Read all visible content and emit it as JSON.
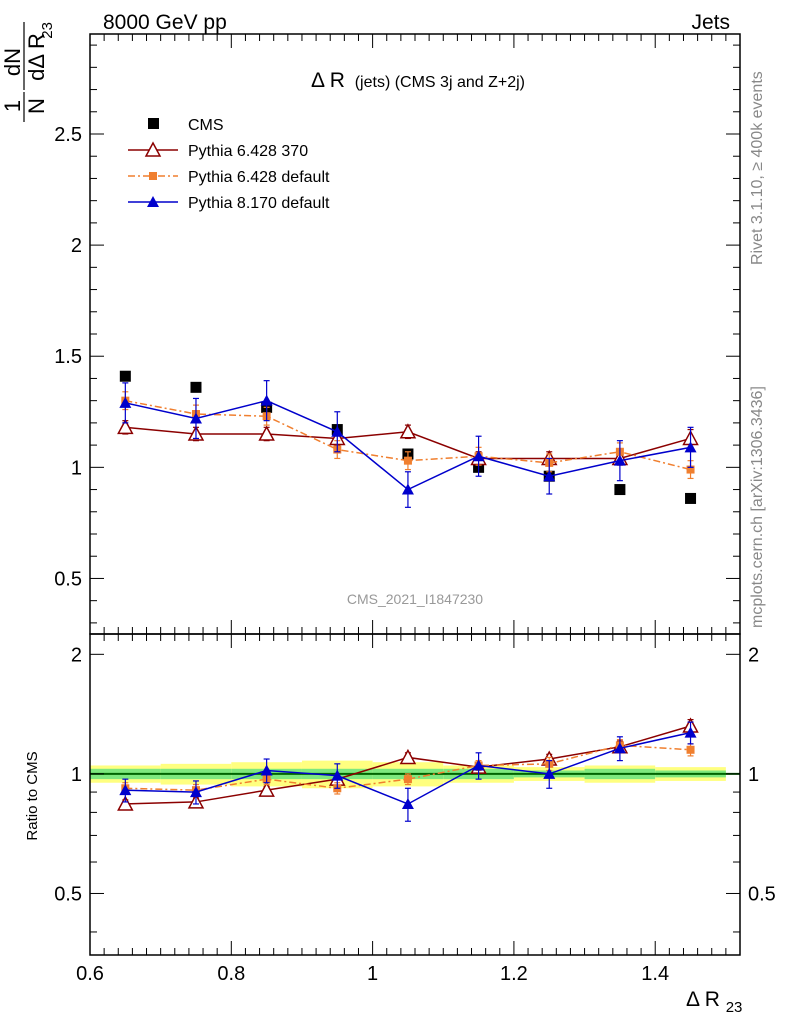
{
  "header": {
    "left": "8000 GeV pp",
    "right": "Jets"
  },
  "side_text": {
    "rivet": "Rivet 3.1.10, ≥ 400k events",
    "mcplots": "mcplots.cern.ch [arXiv:1306.3436]"
  },
  "analysis_id": "CMS_2021_I1847230",
  "colors": {
    "cms": "#000000",
    "py6_370": "#8b0000",
    "py6_default": "#f07f2f",
    "py8_default": "#0000cc",
    "band_inner": "#7ee87e",
    "band_outer": "#ffff80",
    "ratio_line": "#006400"
  },
  "chart_data": [
    {
      "type": "scatter",
      "panel": "main",
      "title_main": "Δ R",
      "title_suffix": "(jets) (CMS 3j and Z+2j)",
      "ylabel": {
        "num": "1",
        "den": "N",
        "dnum": "dN",
        "dden": "dΔ R",
        "sub": "23"
      },
      "xlim": [
        0.6,
        1.52
      ],
      "ylim": [
        0.25,
        2.95
      ],
      "yticks": [
        0.5,
        1,
        1.5,
        2,
        2.5
      ],
      "ytick_labels": [
        "0.5",
        "1",
        "1.5",
        "2",
        "2.5"
      ],
      "grid": false,
      "legend_position": "top-left",
      "x": [
        0.65,
        0.75,
        0.85,
        0.95,
        1.05,
        1.15,
        1.25,
        1.35,
        1.45
      ],
      "series": [
        {
          "name": "CMS",
          "style": "points",
          "marker": "square",
          "values": [
            1.41,
            1.36,
            1.27,
            1.17,
            1.06,
            1.0,
            0.96,
            0.9,
            0.86
          ],
          "errors": [
            0,
            0,
            0,
            0,
            0,
            0,
            0,
            0,
            0
          ]
        },
        {
          "name": "Pythia 6.428 370",
          "style": "line",
          "marker": "triangle-open",
          "values": [
            1.18,
            1.15,
            1.15,
            1.13,
            1.16,
            1.04,
            1.04,
            1.04,
            1.13
          ],
          "errors": [
            0.03,
            0.03,
            0.03,
            0.03,
            0.03,
            0.03,
            0.03,
            0.03,
            0.04
          ]
        },
        {
          "name": "Pythia 6.428 default",
          "style": "dashdot",
          "marker": "square-small",
          "values": [
            1.3,
            1.24,
            1.23,
            1.08,
            1.03,
            1.05,
            1.02,
            1.07,
            0.99
          ],
          "errors": [
            0.04,
            0.04,
            0.04,
            0.04,
            0.04,
            0.04,
            0.04,
            0.04,
            0.04
          ]
        },
        {
          "name": "Pythia 8.170 default",
          "style": "line",
          "marker": "triangle",
          "values": [
            1.29,
            1.22,
            1.3,
            1.16,
            0.9,
            1.05,
            0.96,
            1.03,
            1.09
          ],
          "errors": [
            0.09,
            0.09,
            0.09,
            0.09,
            0.08,
            0.09,
            0.08,
            0.09,
            0.09
          ]
        }
      ]
    },
    {
      "type": "scatter",
      "panel": "ratio",
      "ylabel": "Ratio to CMS",
      "xlabel_main": "Δ R",
      "xlabel_sub": "23",
      "xlim": [
        0.6,
        1.52
      ],
      "ylim": [
        0.35,
        2.25
      ],
      "yticks": [
        0.5,
        1,
        2
      ],
      "ytick_labels": [
        "0.5",
        "1",
        "2"
      ],
      "xticks": [
        0.6,
        0.8,
        1,
        1.2,
        1.4
      ],
      "xtick_labels": [
        "0.6",
        "0.8",
        "1",
        "1.2",
        "1.4"
      ],
      "x": [
        0.65,
        0.75,
        0.85,
        0.95,
        1.05,
        1.15,
        1.25,
        1.35,
        1.45
      ],
      "band": {
        "inner": [
          0.03,
          0.03,
          0.03,
          0.03,
          0.03,
          0.03,
          0.02,
          0.03,
          0.02
        ],
        "outer": [
          0.05,
          0.06,
          0.07,
          0.08,
          0.07,
          0.05,
          0.04,
          0.05,
          0.04
        ]
      },
      "series": [
        {
          "name": "Pythia 6.428 370",
          "style": "line",
          "marker": "triangle-open",
          "values": [
            0.84,
            0.85,
            0.91,
            0.97,
            1.1,
            1.04,
            1.09,
            1.17,
            1.32
          ],
          "errors": [
            0.02,
            0.02,
            0.02,
            0.02,
            0.03,
            0.03,
            0.03,
            0.04,
            0.05
          ]
        },
        {
          "name": "Pythia 6.428 default",
          "style": "dashdot",
          "marker": "square-small",
          "values": [
            0.92,
            0.91,
            0.97,
            0.92,
            0.97,
            1.05,
            1.06,
            1.18,
            1.15
          ],
          "errors": [
            0.03,
            0.03,
            0.03,
            0.03,
            0.03,
            0.03,
            0.04,
            0.04,
            0.04
          ]
        },
        {
          "name": "Pythia 8.170 default",
          "style": "line",
          "marker": "triangle",
          "values": [
            0.91,
            0.9,
            1.02,
            0.99,
            0.84,
            1.05,
            1.0,
            1.16,
            1.27
          ],
          "errors": [
            0.06,
            0.06,
            0.07,
            0.07,
            0.08,
            0.08,
            0.08,
            0.08,
            0.08
          ]
        }
      ]
    }
  ]
}
